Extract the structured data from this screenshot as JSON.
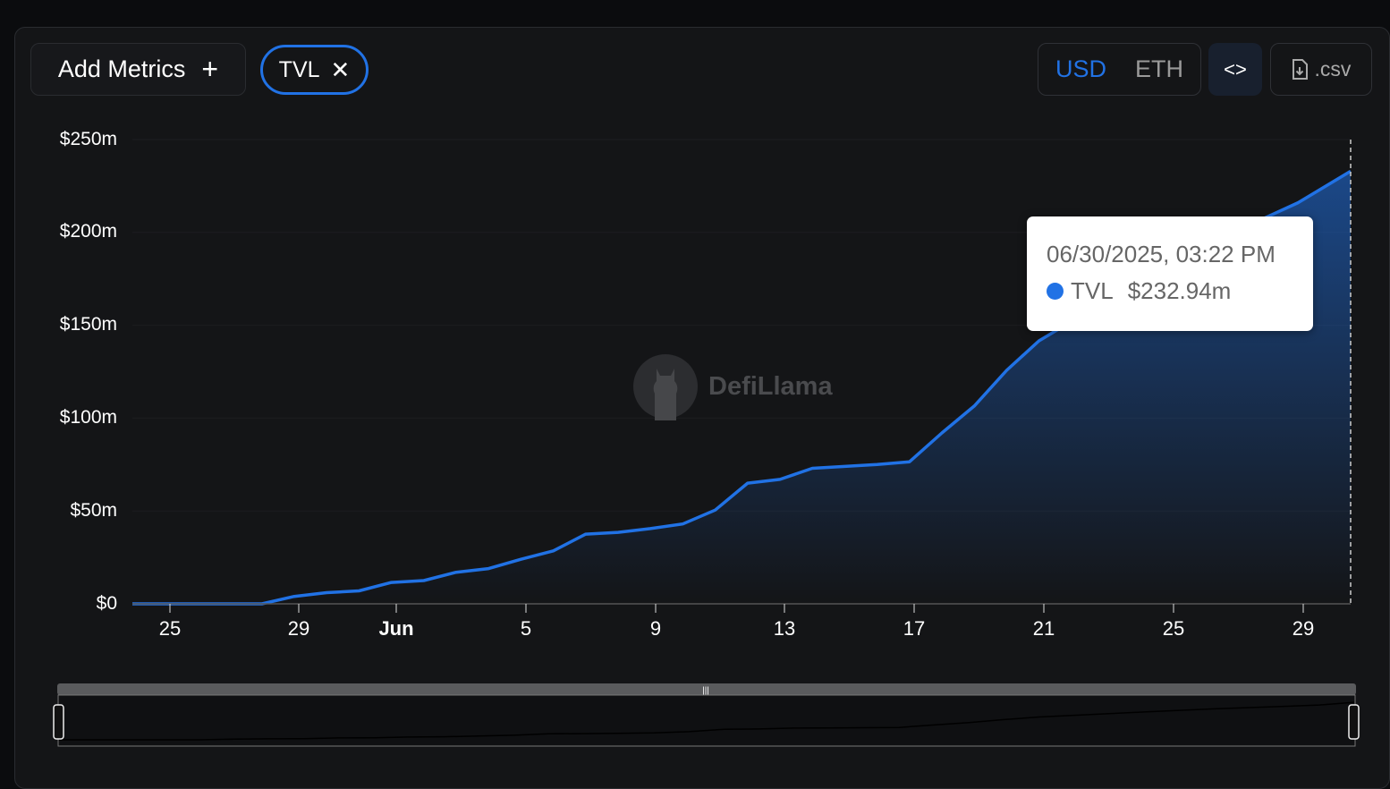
{
  "toolbar": {
    "add_metrics": "Add Metrics",
    "add_icon": "plus-icon",
    "metric_chip": "TVL",
    "remove_icon": "close-icon",
    "currencies": [
      "USD",
      "ETH"
    ],
    "selected_currency": "USD",
    "embed_icon": "code-icon",
    "csv_label": ".csv",
    "csv_icon": "file-download-icon"
  },
  "watermark": "DefiLlama",
  "tooltip": {
    "date": "06/30/2025, 03:22 PM",
    "series": "TVL",
    "value": "$232.94m"
  },
  "colors": {
    "accent": "#2172e5",
    "background": "#141517"
  },
  "chart_data": {
    "type": "area",
    "series": [
      {
        "name": "TVL",
        "color": "#2172e5"
      }
    ],
    "x": [
      "2025-05-24",
      "2025-05-25",
      "2025-05-26",
      "2025-05-27",
      "2025-05-28",
      "2025-05-29",
      "2025-05-30",
      "2025-05-31",
      "2025-06-01",
      "2025-06-02",
      "2025-06-03",
      "2025-06-04",
      "2025-06-05",
      "2025-06-06",
      "2025-06-07",
      "2025-06-08",
      "2025-06-09",
      "2025-06-10",
      "2025-06-11",
      "2025-06-12",
      "2025-06-13",
      "2025-06-14",
      "2025-06-15",
      "2025-06-16",
      "2025-06-17",
      "2025-06-18",
      "2025-06-19",
      "2025-06-20",
      "2025-06-21",
      "2025-06-22",
      "2025-06-23",
      "2025-06-24",
      "2025-06-25",
      "2025-06-26",
      "2025-06-27",
      "2025-06-28",
      "2025-06-29",
      "2025-06-30 15:22"
    ],
    "y": [
      0,
      0,
      0,
      0,
      0,
      4,
      6,
      7,
      11.5,
      12.5,
      17,
      19,
      24,
      28.5,
      37.5,
      38.5,
      40.5,
      43,
      50.5,
      65,
      67,
      73,
      74,
      75,
      76.5,
      92,
      106.5,
      125.7,
      141.6,
      152,
      163,
      173,
      183,
      192,
      200,
      208,
      216,
      232.94
    ],
    "ytick_labels": [
      "$0",
      "$50m",
      "$100m",
      "$150m",
      "$200m",
      "$250m"
    ],
    "ylim": [
      0,
      250
    ],
    "xtick_labels": [
      "25",
      "29",
      "Jun",
      "5",
      "9",
      "13",
      "17",
      "21",
      "25",
      "29"
    ],
    "grid": true,
    "legend": "none"
  }
}
